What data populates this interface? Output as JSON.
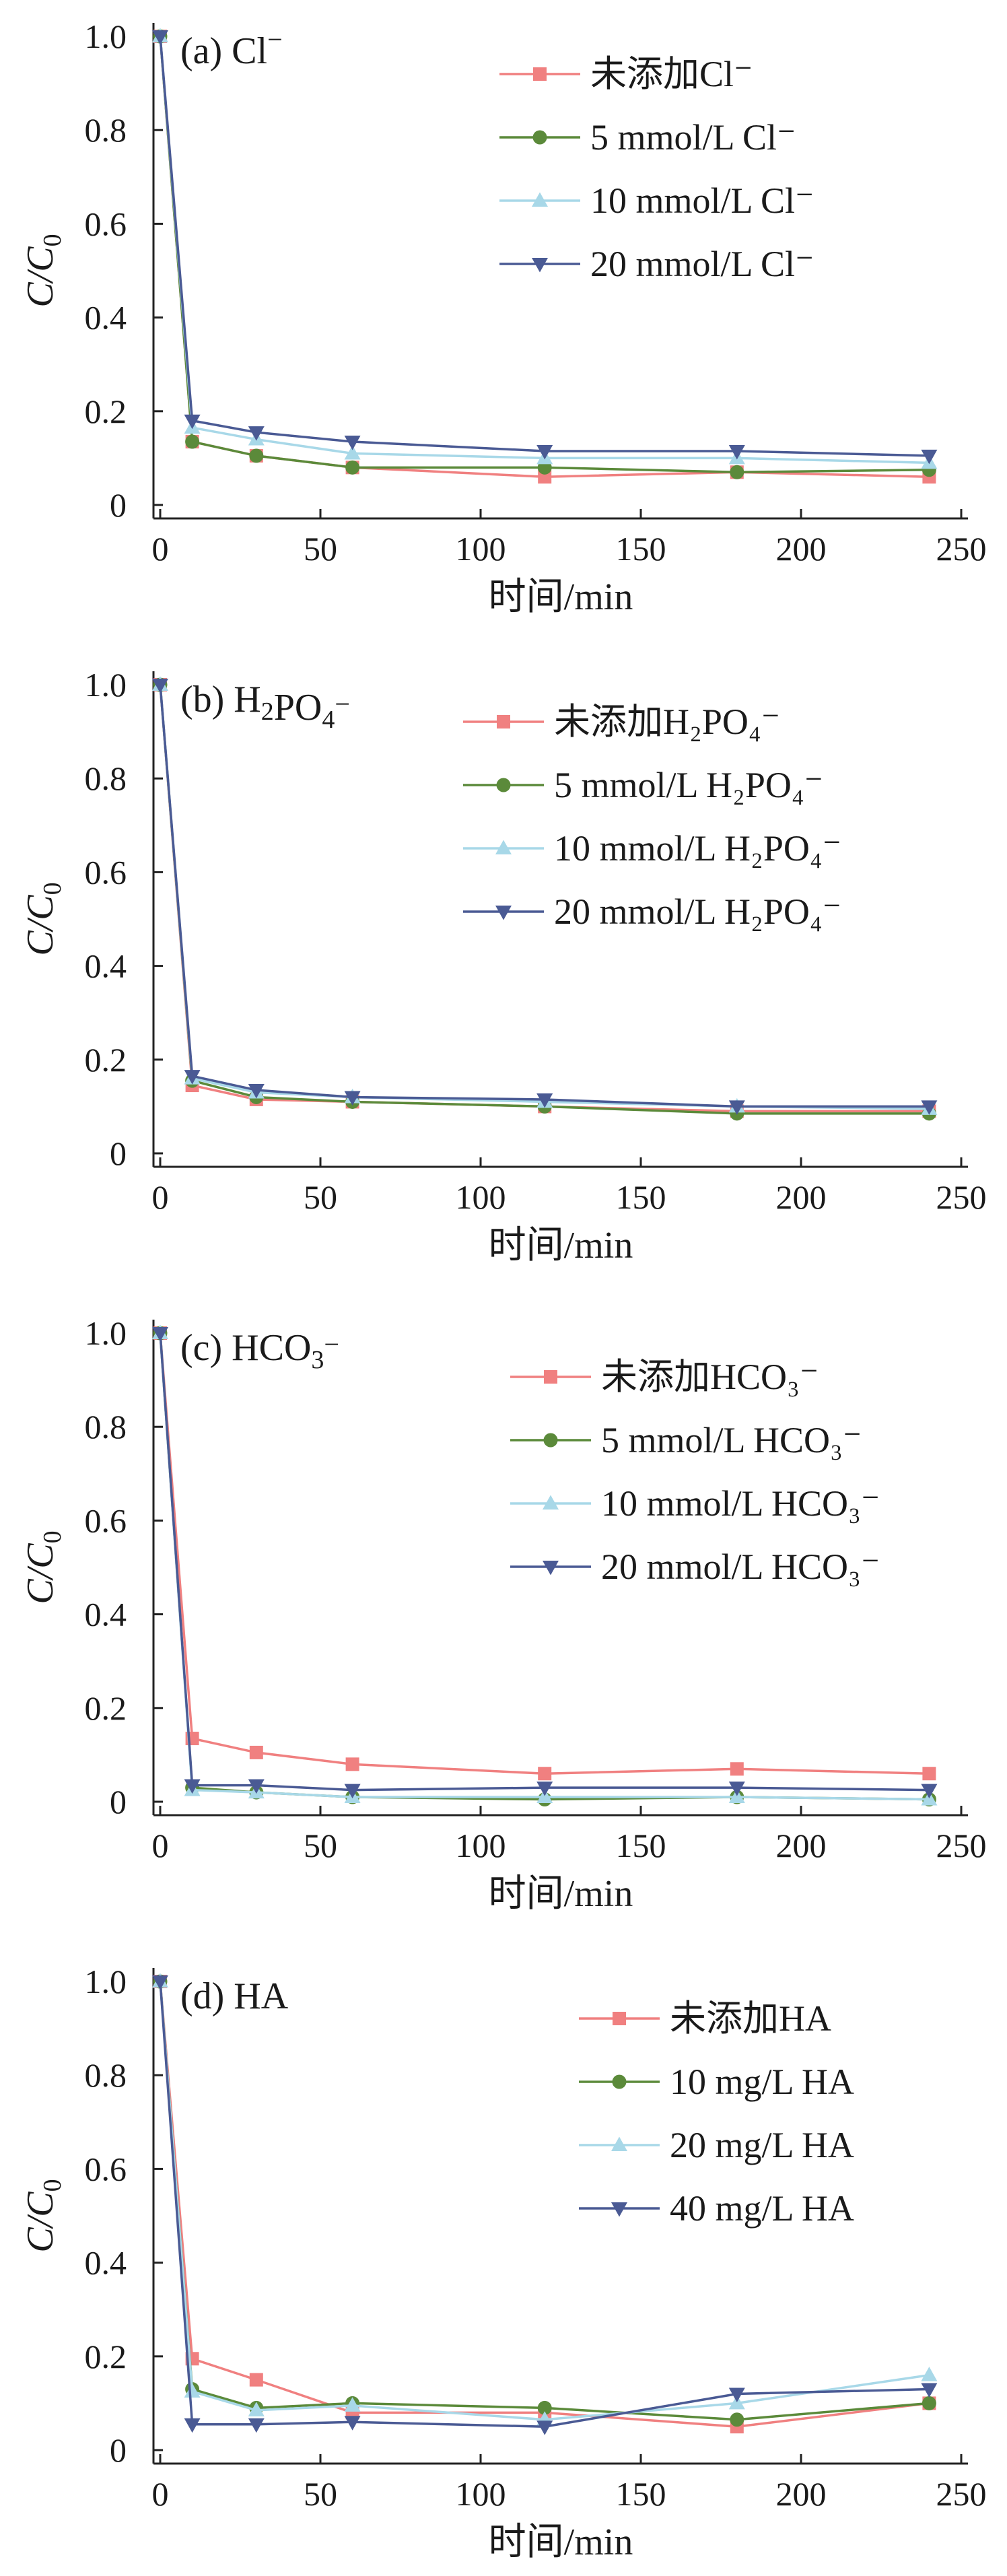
{
  "chart_data": [
    {
      "type": "line",
      "panel_label": "(a)",
      "panel_ion": "Cl",
      "panel_ion_sup": "−",
      "ylabel": "C/C0",
      "xlabel": "时间/min",
      "xlim": [
        0,
        250
      ],
      "ylim": [
        0,
        1.0
      ],
      "xticks": [
        0,
        50,
        100,
        150,
        200,
        250
      ],
      "yticks": [
        0,
        0.2,
        0.4,
        0.6,
        0.8,
        1.0
      ],
      "x": [
        0,
        10,
        30,
        60,
        120,
        180,
        240
      ],
      "grid": false,
      "legend_position": "top-right",
      "series": [
        {
          "name": "未添加Cl⁻",
          "values": [
            1.0,
            0.135,
            0.105,
            0.08,
            0.06,
            0.07,
            0.06
          ]
        },
        {
          "name": "5 mmol/L Cl⁻",
          "values": [
            1.0,
            0.135,
            0.105,
            0.08,
            0.08,
            0.07,
            0.075
          ]
        },
        {
          "name": "10 mmol/L Cl⁻",
          "values": [
            1.0,
            0.165,
            0.14,
            0.11,
            0.1,
            0.1,
            0.09
          ]
        },
        {
          "name": "20 mmol/L Cl⁻",
          "values": [
            1.0,
            0.18,
            0.155,
            0.135,
            0.115,
            0.115,
            0.105
          ]
        }
      ]
    },
    {
      "type": "line",
      "panel_label": "(b)",
      "panel_ion": "H2PO4",
      "panel_ion_sup": "−",
      "ylabel": "C/C0",
      "xlabel": "时间/min",
      "xlim": [
        0,
        250
      ],
      "ylim": [
        0,
        1.0
      ],
      "xticks": [
        0,
        50,
        100,
        150,
        200,
        250
      ],
      "yticks": [
        0,
        0.2,
        0.4,
        0.6,
        0.8,
        1.0
      ],
      "x": [
        0,
        10,
        30,
        60,
        120,
        180,
        240
      ],
      "grid": false,
      "legend_position": "top-right",
      "series": [
        {
          "name": "未添加H₂PO₄⁻",
          "values": [
            1.0,
            0.145,
            0.115,
            0.11,
            0.1,
            0.09,
            0.09
          ]
        },
        {
          "name": "5 mmol/L H₂PO₄⁻",
          "values": [
            1.0,
            0.155,
            0.12,
            0.11,
            0.1,
            0.085,
            0.085
          ]
        },
        {
          "name": "10 mmol/L H₂PO₄⁻",
          "values": [
            1.0,
            0.16,
            0.13,
            0.12,
            0.11,
            0.1,
            0.095
          ]
        },
        {
          "name": "20 mmol/L H₂PO₄⁻",
          "values": [
            1.0,
            0.165,
            0.135,
            0.12,
            0.115,
            0.1,
            0.1
          ]
        }
      ]
    },
    {
      "type": "line",
      "panel_label": "(c)",
      "panel_ion": "HCO3",
      "panel_ion_sup": "−",
      "ylabel": "C/C0",
      "xlabel": "时间/min",
      "xlim": [
        0,
        250
      ],
      "ylim": [
        0,
        1.0
      ],
      "xticks": [
        0,
        50,
        100,
        150,
        200,
        250
      ],
      "yticks": [
        0,
        0.2,
        0.4,
        0.6,
        0.8,
        1.0
      ],
      "x": [
        0,
        10,
        30,
        60,
        120,
        180,
        240
      ],
      "grid": false,
      "legend_position": "top-right",
      "series": [
        {
          "name": "未添加HCO₃⁻",
          "values": [
            1.0,
            0.135,
            0.105,
            0.08,
            0.06,
            0.07,
            0.06
          ]
        },
        {
          "name": "5 mmol/L HCO₃⁻",
          "values": [
            1.0,
            0.03,
            0.02,
            0.01,
            0.005,
            0.01,
            0.005
          ]
        },
        {
          "name": "10 mmol/L HCO₃⁻",
          "values": [
            1.0,
            0.025,
            0.02,
            0.01,
            0.01,
            0.01,
            0.005
          ]
        },
        {
          "name": "20 mmol/L HCO₃⁻",
          "values": [
            1.0,
            0.035,
            0.035,
            0.025,
            0.03,
            0.03,
            0.025
          ]
        }
      ]
    },
    {
      "type": "line",
      "panel_label": "(d)",
      "panel_ion": "HA",
      "panel_ion_sup": "",
      "ylabel": "C/C0",
      "xlabel": "时间/min",
      "xlim": [
        0,
        250
      ],
      "ylim": [
        0,
        1.0
      ],
      "xticks": [
        0,
        50,
        100,
        150,
        200,
        250
      ],
      "yticks": [
        0,
        0.2,
        0.4,
        0.6,
        0.8,
        1.0
      ],
      "x": [
        0,
        10,
        30,
        60,
        120,
        180,
        240
      ],
      "grid": false,
      "legend_position": "top-right",
      "series": [
        {
          "name": "未添加HA",
          "values": [
            1.0,
            0.195,
            0.15,
            0.08,
            0.08,
            0.05,
            0.1
          ]
        },
        {
          "name": "10 mg/L HA",
          "values": [
            1.0,
            0.13,
            0.09,
            0.1,
            0.09,
            0.065,
            0.1
          ]
        },
        {
          "name": "20 mg/L HA",
          "values": [
            1.0,
            0.125,
            0.085,
            0.095,
            0.065,
            0.1,
            0.16
          ]
        },
        {
          "name": "40 mg/L HA",
          "values": [
            1.0,
            0.055,
            0.055,
            0.06,
            0.05,
            0.12,
            0.13
          ]
        }
      ]
    }
  ],
  "style": {
    "series_colors": [
      "#f08080",
      "#5b8a3a",
      "#a8d8e8",
      "#4a5a94"
    ],
    "series_markers": [
      "square",
      "circle",
      "triangle-up",
      "triangle-down"
    ]
  }
}
